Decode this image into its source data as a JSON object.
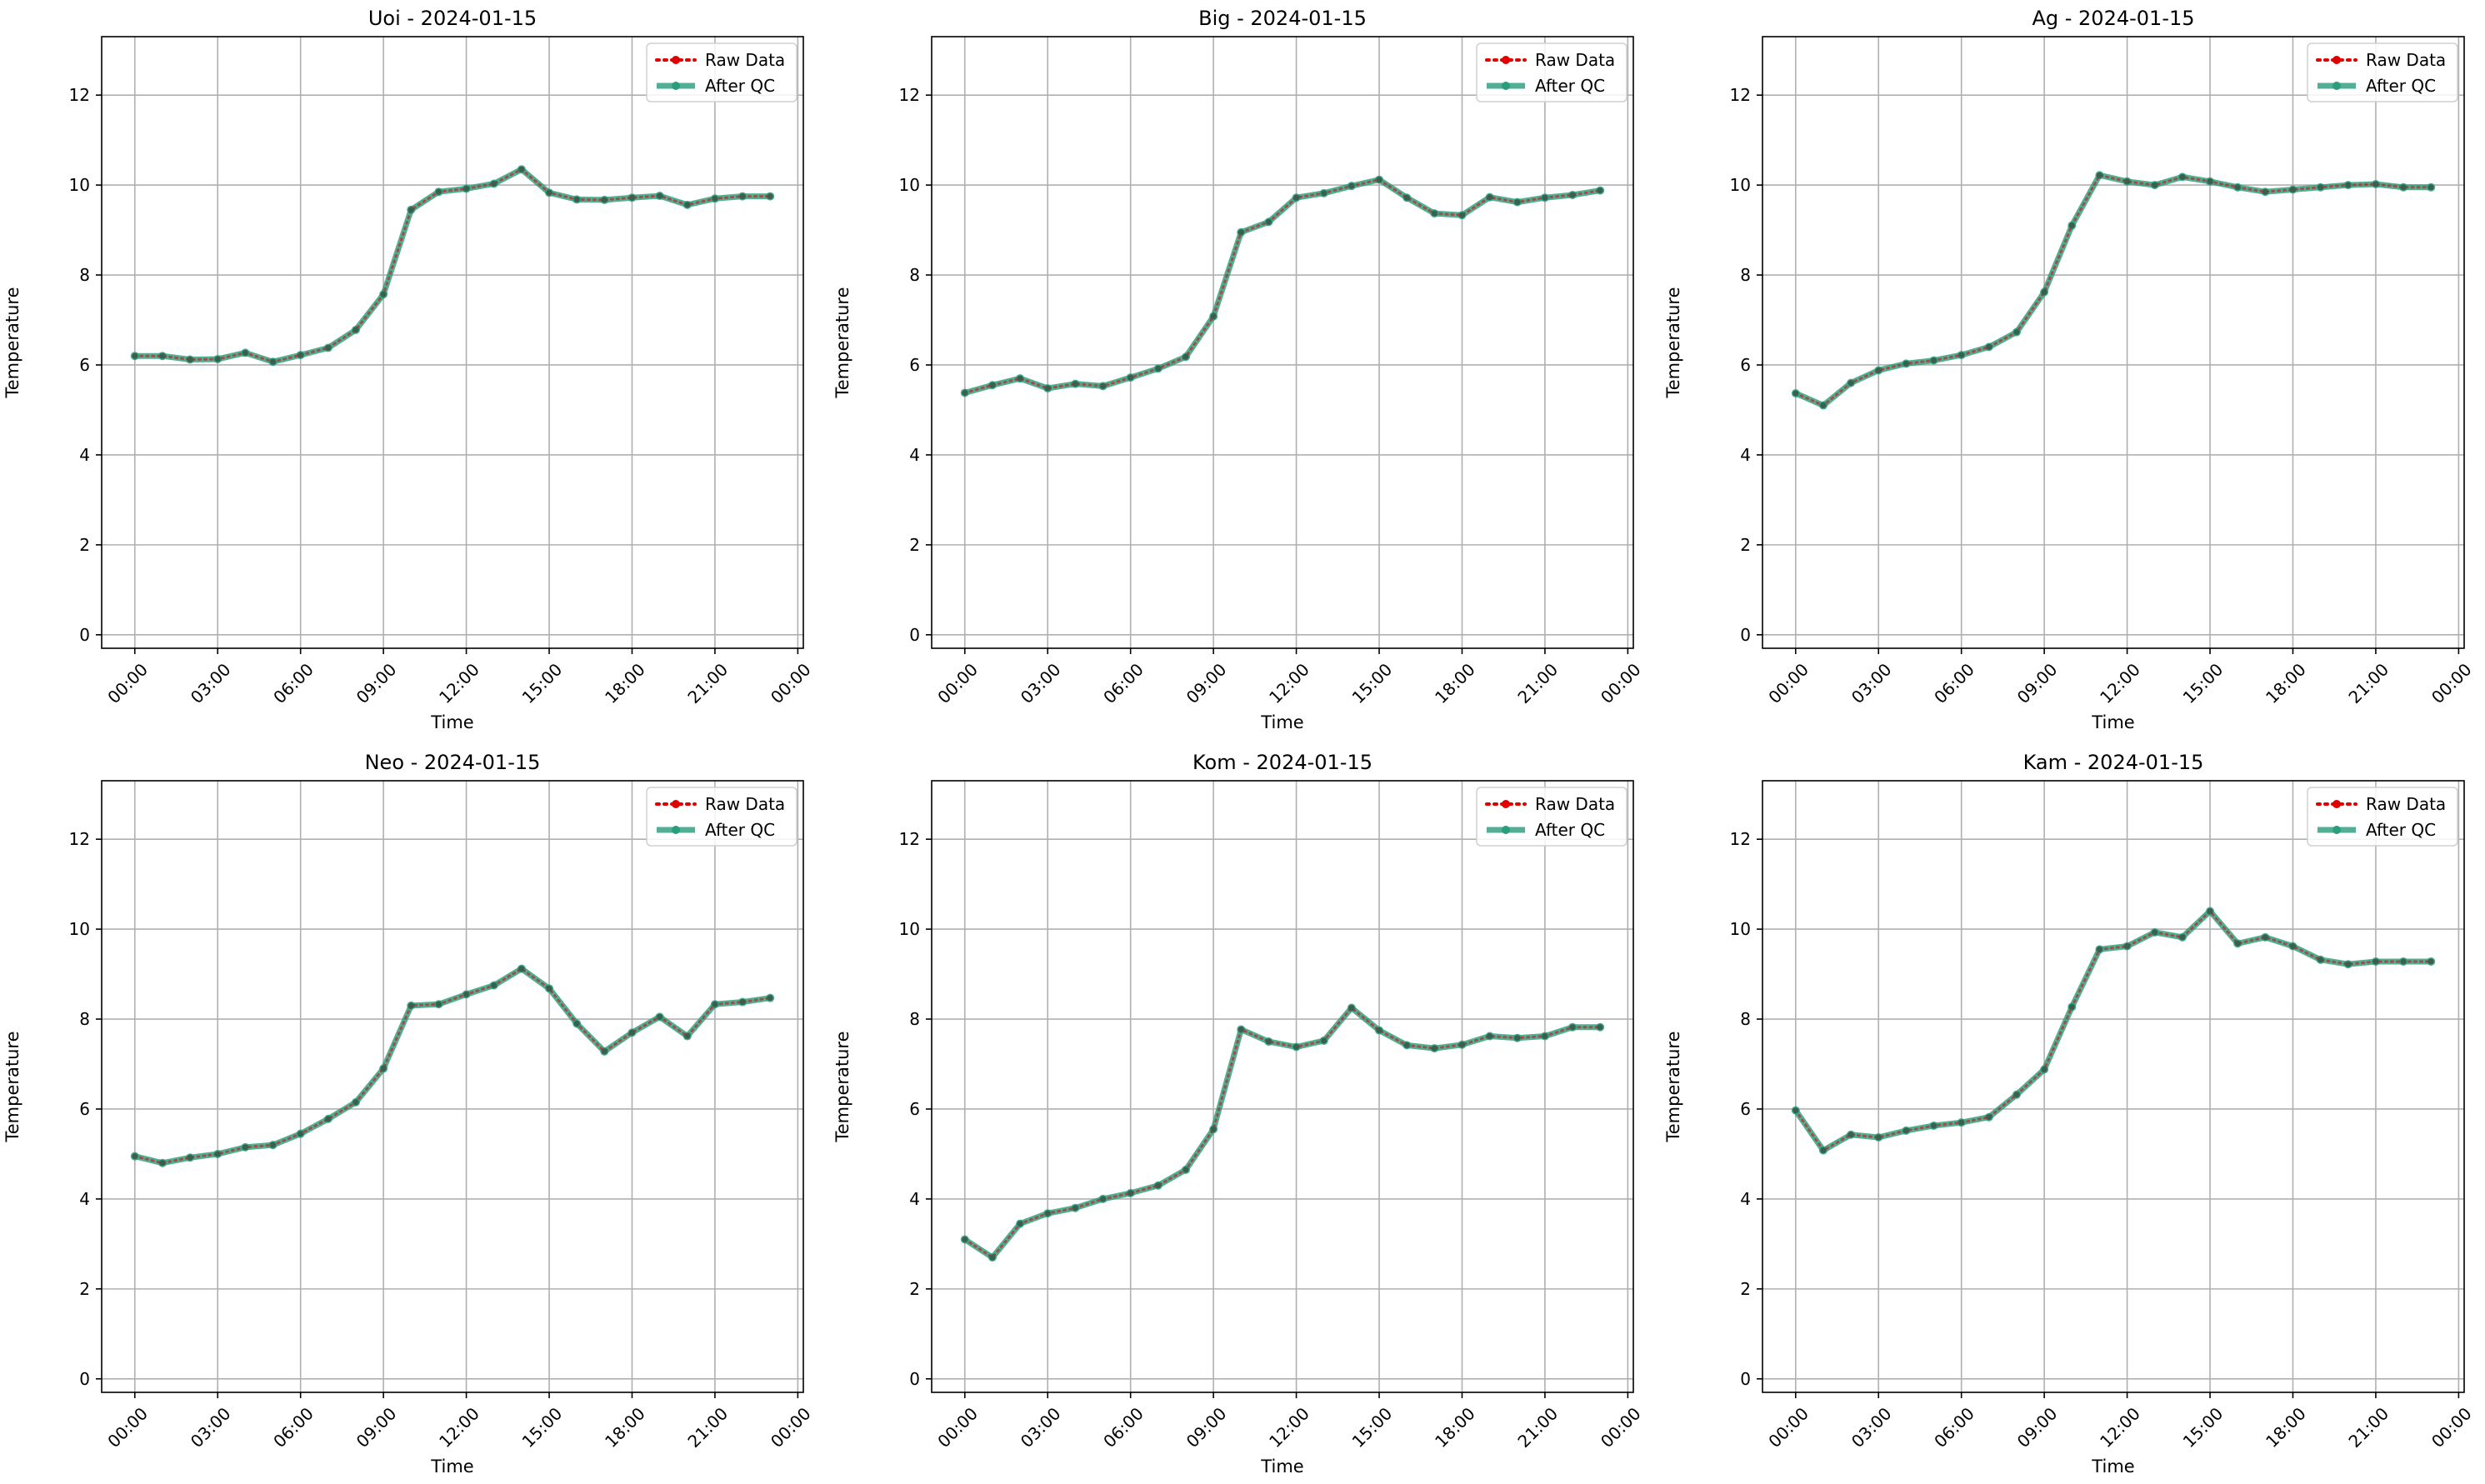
{
  "chart_data": [
    {
      "type": "line",
      "title": "Uoi - 2024-01-15",
      "xlabel": "Time",
      "ylabel": "Temperature",
      "x_ticks": [
        "00:00",
        "03:00",
        "06:00",
        "09:00",
        "12:00",
        "15:00",
        "18:00",
        "21:00",
        "00:00"
      ],
      "y_ticks": [
        "0",
        "2",
        "4",
        "6",
        "8",
        "10",
        "12"
      ],
      "xlim_hours": [
        -1.2,
        24.2
      ],
      "ylim": [
        -0.3,
        13.3
      ],
      "grid": true,
      "legend_position": "upper right",
      "x_hours": [
        0,
        1,
        2,
        3,
        4,
        5,
        6,
        7,
        8,
        9,
        10,
        11,
        12,
        13,
        14,
        15,
        16,
        17,
        18,
        19,
        20,
        21,
        22,
        23
      ],
      "series": [
        {
          "name": "Raw Data",
          "color": "#e00000",
          "style": "dotted",
          "values": [
            6.2,
            6.2,
            6.12,
            6.13,
            6.27,
            6.07,
            6.22,
            6.38,
            6.78,
            7.57,
            9.45,
            9.85,
            9.92,
            10.03,
            10.35,
            9.83,
            9.68,
            9.67,
            9.72,
            9.76,
            9.56,
            9.7,
            9.75,
            9.75
          ]
        },
        {
          "name": "After QC",
          "color": "#2a9d7c",
          "style": "solid",
          "values": [
            6.2,
            6.2,
            6.12,
            6.13,
            6.27,
            6.07,
            6.22,
            6.38,
            6.78,
            7.57,
            9.45,
            9.85,
            9.92,
            10.03,
            10.35,
            9.83,
            9.68,
            9.67,
            9.72,
            9.76,
            9.56,
            9.7,
            9.75,
            9.75
          ]
        }
      ]
    },
    {
      "type": "line",
      "title": "Big - 2024-01-15",
      "xlabel": "Time",
      "ylabel": "Temperature",
      "x_ticks": [
        "00:00",
        "03:00",
        "06:00",
        "09:00",
        "12:00",
        "15:00",
        "18:00",
        "21:00",
        "00:00"
      ],
      "y_ticks": [
        "0",
        "2",
        "4",
        "6",
        "8",
        "10",
        "12"
      ],
      "xlim_hours": [
        -1.2,
        24.2
      ],
      "ylim": [
        -0.3,
        13.3
      ],
      "grid": true,
      "legend_position": "upper right",
      "x_hours": [
        0,
        1,
        2,
        3,
        4,
        5,
        6,
        7,
        8,
        9,
        10,
        11,
        12,
        13,
        14,
        15,
        16,
        17,
        18,
        19,
        20,
        21,
        22,
        23
      ],
      "series": [
        {
          "name": "Raw Data",
          "color": "#e00000",
          "style": "dotted",
          "values": [
            5.38,
            5.55,
            5.7,
            5.48,
            5.58,
            5.53,
            5.72,
            5.92,
            6.18,
            7.08,
            8.95,
            9.18,
            9.72,
            9.82,
            9.98,
            10.12,
            9.72,
            9.37,
            9.33,
            9.73,
            9.62,
            9.72,
            9.78,
            9.88
          ]
        },
        {
          "name": "After QC",
          "color": "#2a9d7c",
          "style": "solid",
          "values": [
            5.38,
            5.55,
            5.7,
            5.48,
            5.58,
            5.53,
            5.72,
            5.92,
            6.18,
            7.08,
            8.95,
            9.18,
            9.72,
            9.82,
            9.98,
            10.12,
            9.72,
            9.37,
            9.33,
            9.73,
            9.62,
            9.72,
            9.78,
            9.88
          ]
        }
      ]
    },
    {
      "type": "line",
      "title": "Ag - 2024-01-15",
      "xlabel": "Time",
      "ylabel": "Temperature",
      "x_ticks": [
        "00:00",
        "03:00",
        "06:00",
        "09:00",
        "12:00",
        "15:00",
        "18:00",
        "21:00",
        "00:00"
      ],
      "y_ticks": [
        "0",
        "2",
        "4",
        "6",
        "8",
        "10",
        "12"
      ],
      "xlim_hours": [
        -1.2,
        24.2
      ],
      "ylim": [
        -0.3,
        13.3
      ],
      "grid": true,
      "legend_position": "upper right",
      "x_hours": [
        0,
        1,
        2,
        3,
        4,
        5,
        6,
        7,
        8,
        9,
        10,
        11,
        12,
        13,
        14,
        15,
        16,
        17,
        18,
        19,
        20,
        21,
        22,
        23
      ],
      "series": [
        {
          "name": "Raw Data",
          "color": "#e00000",
          "style": "dotted",
          "values": [
            5.37,
            5.1,
            5.6,
            5.88,
            6.03,
            6.1,
            6.22,
            6.4,
            6.73,
            7.62,
            9.1,
            10.22,
            10.08,
            10.0,
            10.18,
            10.08,
            9.95,
            9.85,
            9.9,
            9.95,
            10.0,
            10.02,
            9.95,
            9.95
          ]
        },
        {
          "name": "After QC",
          "color": "#2a9d7c",
          "style": "solid",
          "values": [
            5.37,
            5.1,
            5.6,
            5.88,
            6.03,
            6.1,
            6.22,
            6.4,
            6.73,
            7.62,
            9.1,
            10.22,
            10.08,
            10.0,
            10.18,
            10.08,
            9.95,
            9.85,
            9.9,
            9.95,
            10.0,
            10.02,
            9.95,
            9.95
          ]
        }
      ]
    },
    {
      "type": "line",
      "title": "Neo - 2024-01-15",
      "xlabel": "Time",
      "ylabel": "Temperature",
      "x_ticks": [
        "00:00",
        "03:00",
        "06:00",
        "09:00",
        "12:00",
        "15:00",
        "18:00",
        "21:00",
        "00:00"
      ],
      "y_ticks": [
        "0",
        "2",
        "4",
        "6",
        "8",
        "10",
        "12"
      ],
      "xlim_hours": [
        -1.2,
        24.2
      ],
      "ylim": [
        -0.3,
        13.3
      ],
      "grid": true,
      "legend_position": "upper right",
      "x_hours": [
        0,
        1,
        2,
        3,
        4,
        5,
        6,
        7,
        8,
        9,
        10,
        11,
        12,
        13,
        14,
        15,
        16,
        17,
        18,
        19,
        20,
        21,
        22,
        23
      ],
      "series": [
        {
          "name": "Raw Data",
          "color": "#e00000",
          "style": "dotted",
          "values": [
            4.95,
            4.8,
            4.92,
            5.0,
            5.15,
            5.2,
            5.45,
            5.78,
            6.15,
            6.9,
            8.3,
            8.33,
            8.55,
            8.75,
            9.12,
            8.68,
            7.9,
            7.28,
            7.7,
            8.05,
            7.62,
            8.33,
            8.38,
            8.47
          ]
        },
        {
          "name": "After QC",
          "color": "#2a9d7c",
          "style": "solid",
          "values": [
            4.95,
            4.8,
            4.92,
            5.0,
            5.15,
            5.2,
            5.45,
            5.78,
            6.15,
            6.9,
            8.3,
            8.33,
            8.55,
            8.75,
            9.12,
            8.68,
            7.9,
            7.28,
            7.7,
            8.05,
            7.62,
            8.33,
            8.38,
            8.47
          ]
        }
      ]
    },
    {
      "type": "line",
      "title": "Kom - 2024-01-15",
      "xlabel": "Time",
      "ylabel": "Temperature",
      "x_ticks": [
        "00:00",
        "03:00",
        "06:00",
        "09:00",
        "12:00",
        "15:00",
        "18:00",
        "21:00",
        "00:00"
      ],
      "y_ticks": [
        "0",
        "2",
        "4",
        "6",
        "8",
        "10",
        "12"
      ],
      "xlim_hours": [
        -1.2,
        24.2
      ],
      "ylim": [
        -0.3,
        13.3
      ],
      "grid": true,
      "legend_position": "upper right",
      "x_hours": [
        0,
        1,
        2,
        3,
        4,
        5,
        6,
        7,
        8,
        9,
        10,
        11,
        12,
        13,
        14,
        15,
        16,
        17,
        18,
        19,
        20,
        21,
        22,
        23
      ],
      "series": [
        {
          "name": "Raw Data",
          "color": "#e00000",
          "style": "dotted",
          "values": [
            3.1,
            2.7,
            3.45,
            3.68,
            3.8,
            4.0,
            4.13,
            4.3,
            4.65,
            5.55,
            7.77,
            7.5,
            7.38,
            7.52,
            8.25,
            7.75,
            7.42,
            7.35,
            7.43,
            7.62,
            7.58,
            7.62,
            7.82,
            7.82
          ]
        },
        {
          "name": "After QC",
          "color": "#2a9d7c",
          "style": "solid",
          "values": [
            3.1,
            2.7,
            3.45,
            3.68,
            3.8,
            4.0,
            4.13,
            4.3,
            4.65,
            5.55,
            7.77,
            7.5,
            7.38,
            7.52,
            8.25,
            7.75,
            7.42,
            7.35,
            7.43,
            7.62,
            7.58,
            7.62,
            7.82,
            7.82
          ]
        }
      ]
    },
    {
      "type": "line",
      "title": "Kam - 2024-01-15",
      "xlabel": "Time",
      "ylabel": "Temperature",
      "x_ticks": [
        "00:00",
        "03:00",
        "06:00",
        "09:00",
        "12:00",
        "15:00",
        "18:00",
        "21:00",
        "00:00"
      ],
      "y_ticks": [
        "0",
        "2",
        "4",
        "6",
        "8",
        "10",
        "12"
      ],
      "xlim_hours": [
        -1.2,
        24.2
      ],
      "ylim": [
        -0.3,
        13.3
      ],
      "grid": true,
      "legend_position": "upper right",
      "x_hours": [
        0,
        1,
        2,
        3,
        4,
        5,
        6,
        7,
        8,
        9,
        10,
        11,
        12,
        13,
        14,
        15,
        16,
        17,
        18,
        19,
        20,
        21,
        22,
        23
      ],
      "series": [
        {
          "name": "Raw Data",
          "color": "#e00000",
          "style": "dotted",
          "values": [
            5.97,
            5.08,
            5.43,
            5.37,
            5.52,
            5.63,
            5.7,
            5.82,
            6.32,
            6.88,
            8.27,
            9.55,
            9.62,
            9.93,
            9.82,
            10.4,
            9.68,
            9.82,
            9.62,
            9.32,
            9.22,
            9.28,
            9.28,
            9.28
          ]
        },
        {
          "name": "After QC",
          "color": "#2a9d7c",
          "style": "solid",
          "values": [
            5.97,
            5.08,
            5.43,
            5.37,
            5.52,
            5.63,
            5.7,
            5.82,
            6.32,
            6.88,
            8.27,
            9.55,
            9.62,
            9.93,
            9.82,
            10.4,
            9.68,
            9.82,
            9.62,
            9.32,
            9.22,
            9.28,
            9.28,
            9.28
          ]
        }
      ]
    }
  ]
}
